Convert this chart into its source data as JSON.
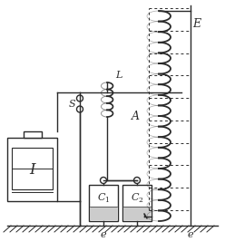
{
  "bg_color": "#ffffff",
  "fg_color": "#2a2a2a",
  "label_I": "I",
  "label_S": "S",
  "label_L": "L",
  "label_C1": "C",
  "label_C2": "C",
  "label_A": "A",
  "label_E": "E",
  "label_e": "e",
  "figsize": [
    2.48,
    2.77
  ],
  "dpi": 100
}
